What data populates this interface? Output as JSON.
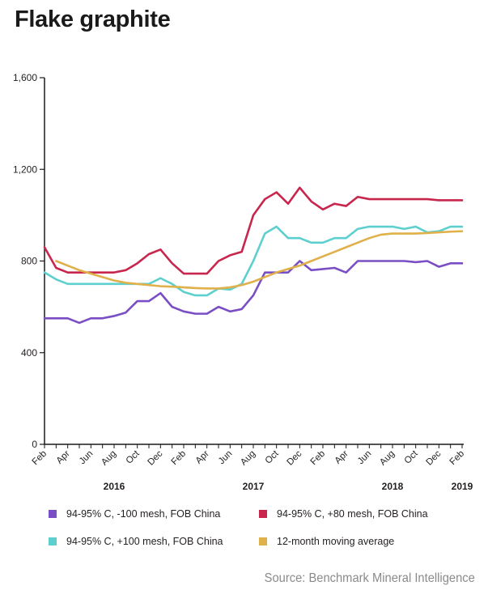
{
  "title": "Flake graphite",
  "source": "Source: Benchmark Mineral Intelligence",
  "colors": {
    "purple": "#7a4ec4",
    "crimson": "#c8264d",
    "teal": "#5ecfcf",
    "gold": "#e0b04a",
    "axis": "#1a1a1a"
  },
  "chart_data": {
    "type": "line",
    "title": "Flake graphite",
    "xlabel": "",
    "ylabel": "",
    "ylim": [
      0,
      1600
    ],
    "yticks": [
      0,
      400,
      800,
      1200,
      1600
    ],
    "ytick_labels": [
      "0",
      "400",
      "800",
      "1,200",
      "1,600"
    ],
    "x_tick_labels": [
      "Feb",
      "Apr",
      "Jun",
      "Aug",
      "Oct",
      "Dec",
      "Feb",
      "Apr",
      "Jun",
      "Aug",
      "Oct",
      "Dec",
      "Feb",
      "Apr",
      "Jun",
      "Aug",
      "Oct",
      "Dec",
      "Feb"
    ],
    "year_labels": [
      {
        "label": "2016",
        "month_index": 6
      },
      {
        "label": "2017",
        "month_index": 18
      },
      {
        "label": "2018",
        "month_index": 30
      },
      {
        "label": "2019",
        "month_index": 36
      }
    ],
    "x_start": "Feb 2016",
    "x_end": "Feb 2019",
    "grid": false,
    "series": [
      {
        "name": "94-95% C, -100 mesh, FOB China",
        "color": "#7a4ec4",
        "values": [
          550,
          550,
          550,
          530,
          550,
          550,
          560,
          575,
          625,
          625,
          660,
          600,
          580,
          570,
          570,
          600,
          580,
          590,
          650,
          750,
          750,
          750,
          800,
          760,
          765,
          770,
          750,
          800,
          800,
          800,
          800,
          800,
          795,
          800,
          775,
          790,
          790
        ]
      },
      {
        "name": "94-95% C, +80 mesh, FOB China",
        "color": "#c8264d",
        "values": [
          860,
          770,
          750,
          750,
          750,
          750,
          750,
          760,
          790,
          830,
          850,
          790,
          745,
          745,
          745,
          800,
          825,
          840,
          1000,
          1070,
          1100,
          1050,
          1120,
          1060,
          1025,
          1050,
          1040,
          1080,
          1070,
          1070,
          1070,
          1070,
          1070,
          1070,
          1065,
          1065,
          1065
        ]
      },
      {
        "name": "94-95% C, +100 mesh, FOB China",
        "color": "#5ecfcf",
        "values": [
          750,
          720,
          700,
          700,
          700,
          700,
          700,
          700,
          700,
          700,
          725,
          700,
          665,
          650,
          650,
          680,
          675,
          700,
          800,
          920,
          950,
          900,
          900,
          880,
          880,
          900,
          900,
          940,
          950,
          950,
          950,
          940,
          950,
          925,
          930,
          950,
          950
        ]
      },
      {
        "name": "12-month moving average",
        "color": "#e0b04a",
        "values": [
          null,
          800,
          780,
          760,
          745,
          730,
          715,
          705,
          700,
          695,
          690,
          688,
          685,
          682,
          680,
          680,
          685,
          695,
          710,
          730,
          750,
          765,
          780,
          800,
          820,
          840,
          860,
          880,
          900,
          915,
          920,
          920,
          920,
          922,
          925,
          928,
          930
        ]
      }
    ]
  },
  "legend": [
    {
      "label": "94-95% C, -100 mesh, FOB China",
      "color": "#7a4ec4"
    },
    {
      "label": "94-95% C, +80 mesh, FOB China",
      "color": "#c8264d"
    },
    {
      "label": "94-95% C, +100 mesh, FOB China",
      "color": "#5ecfcf"
    },
    {
      "label": "12-month moving average",
      "color": "#e0b04a"
    }
  ]
}
